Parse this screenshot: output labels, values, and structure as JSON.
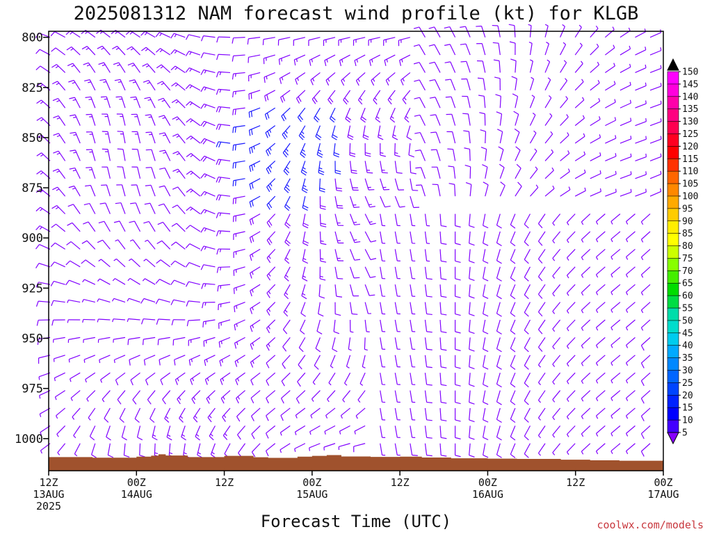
{
  "chart_data": {
    "type": "wind-barb",
    "title": "2025081312 NAM forecast wind profile (kt) for KLGB",
    "xlabel": "Forecast Time (UTC)",
    "ylabel": "",
    "credit": "coolwx.com/models",
    "y_axis": {
      "ticks": [
        800,
        825,
        850,
        875,
        900,
        925,
        950,
        975,
        1000
      ],
      "tick_labels": [
        "800",
        "825",
        "850",
        "875",
        "900",
        "925",
        "950",
        "975",
        "1000"
      ],
      "range": [
        797,
        1016
      ],
      "inverted": true
    },
    "x_axis": {
      "range": [
        0,
        84
      ],
      "tick_hours": [
        0,
        12,
        24,
        36,
        48,
        60,
        72,
        84
      ],
      "tick_labels": [
        {
          "l1": "12Z",
          "l2": "13AUG",
          "l3": "2025"
        },
        {
          "l1": "00Z",
          "l2": "14AUG",
          "l3": ""
        },
        {
          "l1": "12Z",
          "l2": "",
          "l3": ""
        },
        {
          "l1": "00Z",
          "l2": "15AUG",
          "l3": ""
        },
        {
          "l1": "12Z",
          "l2": "",
          "l3": ""
        },
        {
          "l1": "00Z",
          "l2": "16AUG",
          "l3": ""
        },
        {
          "l1": "12Z",
          "l2": "",
          "l3": ""
        },
        {
          "l1": "00Z",
          "l2": "17AUG",
          "l3": ""
        }
      ]
    },
    "colorbar": {
      "units": "kt",
      "labels": [
        "150",
        "145",
        "140",
        "135",
        "130",
        "125",
        "120",
        "115",
        "110",
        "105",
        "100",
        "95",
        "90",
        "85",
        "80",
        "75",
        "70",
        "65",
        "60",
        "55",
        "50",
        "45",
        "40",
        "35",
        "30",
        "25",
        "20",
        "15",
        "10",
        "5"
      ],
      "colors": [
        "#ff00ff",
        "#ff00dd",
        "#ff00aa",
        "#ff0080",
        "#ff0050",
        "#ff0020",
        "#ff0000",
        "#ff3300",
        "#ff6600",
        "#ff8800",
        "#ffaa00",
        "#ffcc00",
        "#ffee00",
        "#ffff00",
        "#ccff00",
        "#88ff00",
        "#44ee00",
        "#00dd00",
        "#00dd44",
        "#00ddaa",
        "#00ddcc",
        "#00ccee",
        "#00aaff",
        "#0088ff",
        "#0066ff",
        "#0044ff",
        "#0022ff",
        "#0000ff",
        "#4400ff",
        "#8800ff"
      ]
    },
    "surface_pressure": [
      {
        "hour": 0,
        "p": 1009.2
      },
      {
        "hour": 6,
        "p": 1009.5
      },
      {
        "hour": 12,
        "p": 1009.0
      },
      {
        "hour": 14,
        "p": 1008.5
      },
      {
        "hour": 15,
        "p": 1007.8
      },
      {
        "hour": 16,
        "p": 1008.4
      },
      {
        "hour": 19,
        "p": 1009.2
      },
      {
        "hour": 24,
        "p": 1008.6
      },
      {
        "hour": 28,
        "p": 1009.3
      },
      {
        "hour": 30,
        "p": 1009.6
      },
      {
        "hour": 34,
        "p": 1009.0
      },
      {
        "hour": 36,
        "p": 1008.6
      },
      {
        "hour": 38,
        "p": 1008.2
      },
      {
        "hour": 40,
        "p": 1008.9
      },
      {
        "hour": 44,
        "p": 1009.1
      },
      {
        "hour": 48,
        "p": 1009.0
      },
      {
        "hour": 51,
        "p": 1009.4
      },
      {
        "hour": 55,
        "p": 1009.8
      },
      {
        "hour": 60,
        "p": 1010.0
      },
      {
        "hour": 64,
        "p": 1010.1
      },
      {
        "hour": 70,
        "p": 1010.5
      },
      {
        "hour": 74,
        "p": 1010.8
      },
      {
        "hour": 78,
        "p": 1011.0
      },
      {
        "hour": 84,
        "p": 1010.8
      }
    ],
    "colors": {
      "terrain": "#a0522d",
      "barb_light": "#8000ff",
      "barb_strong": "#1a1aff"
    }
  }
}
